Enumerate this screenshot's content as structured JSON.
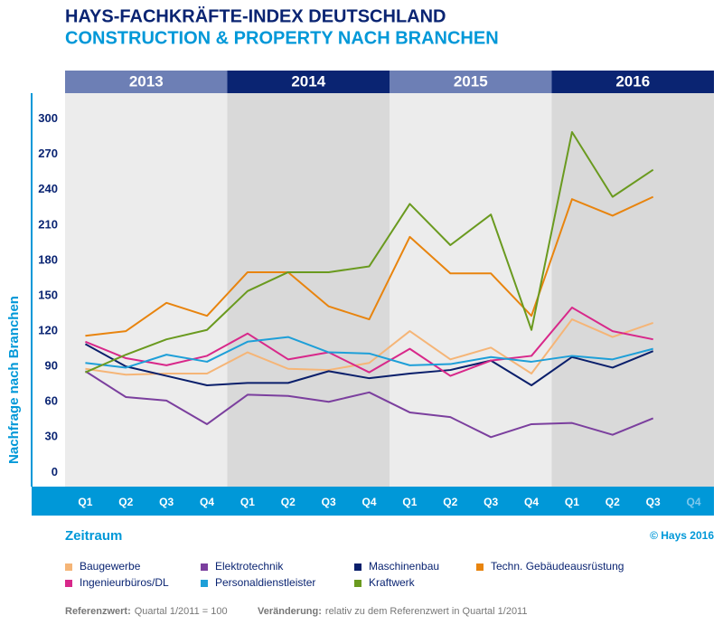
{
  "chart_data": {
    "type": "line",
    "title": "HAYS-FACHKRÄFTE-INDEX DEUTSCHLAND",
    "subtitle": "CONSTRUCTION & PROPERTY NACH BRANCHEN",
    "y_label": "Nachfrage nach Branchen",
    "x_label": "Zeitraum",
    "source": "© Hays 2016",
    "years": [
      "2013",
      "2014",
      "2015",
      "2016"
    ],
    "categories": [
      "Q1",
      "Q2",
      "Q3",
      "Q4",
      "Q1",
      "Q2",
      "Q3",
      "Q4",
      "Q1",
      "Q2",
      "Q3",
      "Q4",
      "Q1",
      "Q2",
      "Q3",
      "Q4"
    ],
    "ylim": [
      -12,
      322
    ],
    "yticks": [
      0,
      30,
      60,
      90,
      120,
      150,
      180,
      210,
      240,
      270,
      300
    ],
    "grid": false,
    "series": [
      {
        "name": "Baugewerbe",
        "color": "#f5b577",
        "values": [
          88,
          83,
          84,
          84,
          102,
          88,
          87,
          93,
          120,
          96,
          106,
          84,
          130,
          115,
          127,
          null
        ]
      },
      {
        "name": "Elektrotechnik",
        "color": "#7b3f9e",
        "values": [
          86,
          64,
          61,
          41,
          66,
          65,
          60,
          68,
          51,
          47,
          30,
          41,
          42,
          32,
          46,
          null
        ]
      },
      {
        "name": "Maschinenbau",
        "color": "#0a1f6b",
        "values": [
          109,
          90,
          82,
          74,
          76,
          76,
          86,
          80,
          84,
          87,
          95,
          74,
          98,
          89,
          103,
          null
        ]
      },
      {
        "name": "Techn. Gebäudeausrüstung",
        "color": "#e8840e",
        "values": [
          116,
          120,
          144,
          133,
          170,
          170,
          141,
          130,
          200,
          169,
          169,
          133,
          232,
          218,
          234,
          null
        ]
      },
      {
        "name": "Ingenieurbüros/DL",
        "color": "#d8288a",
        "values": [
          111,
          97,
          91,
          99,
          118,
          96,
          102,
          85,
          105,
          82,
          95,
          99,
          140,
          120,
          113,
          null
        ]
      },
      {
        "name": "Personaldienstleister",
        "color": "#1e9fd8",
        "values": [
          93,
          89,
          100,
          94,
          111,
          115,
          102,
          101,
          91,
          92,
          98,
          94,
          99,
          96,
          105,
          null
        ]
      },
      {
        "name": "Kraftwerk",
        "color": "#6a9a1f",
        "values": [
          85,
          100,
          113,
          121,
          154,
          170,
          170,
          175,
          228,
          193,
          219,
          121,
          289,
          234,
          257,
          null
        ]
      }
    ],
    "footnotes": [
      {
        "label": "Referenzwert:",
        "text": "Quartal 1/2011 = 100"
      },
      {
        "label": "Veränderung:",
        "text": "relativ zu dem Referenzwert in Quartal 1/2011"
      }
    ]
  }
}
